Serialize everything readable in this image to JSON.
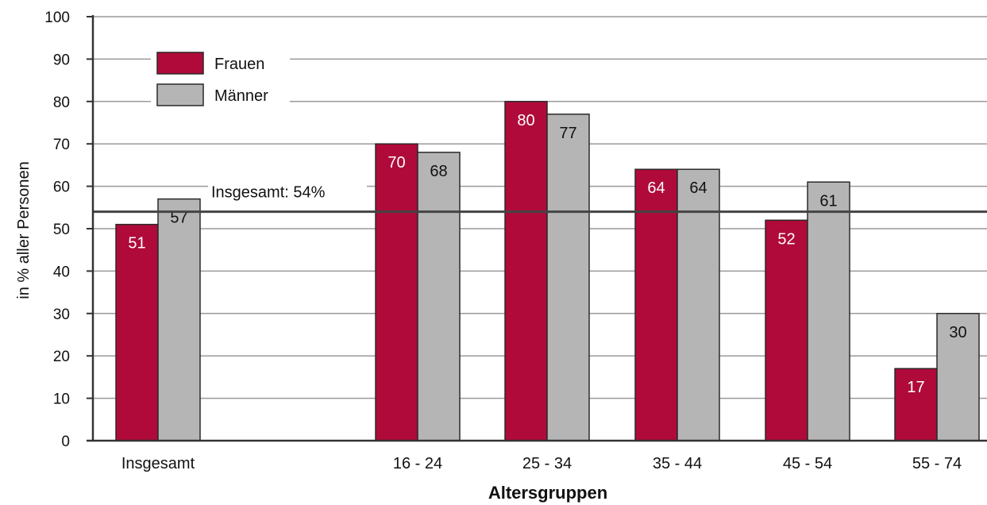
{
  "chart_data": {
    "type": "bar",
    "categories": [
      "Insgesamt",
      "16 - 24",
      "25 - 34",
      "35 - 44",
      "45 - 54",
      "55 - 74"
    ],
    "series": [
      {
        "name": "Frauen",
        "values": [
          51,
          70,
          80,
          64,
          52,
          17
        ],
        "color": "#b00a3a"
      },
      {
        "name": "Männer",
        "values": [
          57,
          68,
          77,
          64,
          61,
          30
        ],
        "color": "#b5b5b5"
      }
    ],
    "xlabel": "Altersgruppen",
    "ylabel": "in % aller Personen",
    "ylim": [
      0,
      100
    ],
    "yticks": [
      0,
      10,
      20,
      30,
      40,
      50,
      60,
      70,
      80,
      90,
      100
    ],
    "grid": true,
    "legend_position": "top-left",
    "reference_line": {
      "value": 54,
      "label": "Insgesamt: 54%"
    }
  }
}
